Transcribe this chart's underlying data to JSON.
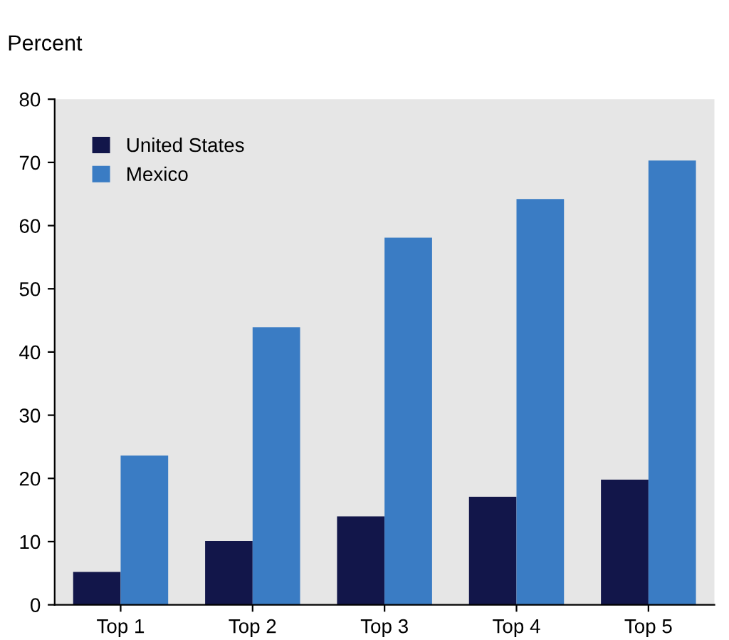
{
  "chart_data": {
    "type": "bar",
    "ylabel": "Percent",
    "categories": [
      "Top 1",
      "Top 2",
      "Top 3",
      "Top 4",
      "Top 5"
    ],
    "series": [
      {
        "name": "United States",
        "color": "#12164a",
        "values": [
          5.2,
          10.1,
          14,
          17.1,
          19.8
        ]
      },
      {
        "name": "Mexico",
        "color": "#3a7cc4",
        "values": [
          23.6,
          43.9,
          58.1,
          64.2,
          70.3
        ]
      }
    ],
    "ylim": [
      0,
      80
    ],
    "yticks": [
      0,
      10,
      20,
      30,
      40,
      50,
      60,
      70,
      80
    ],
    "grid": false,
    "legend": "top left"
  }
}
